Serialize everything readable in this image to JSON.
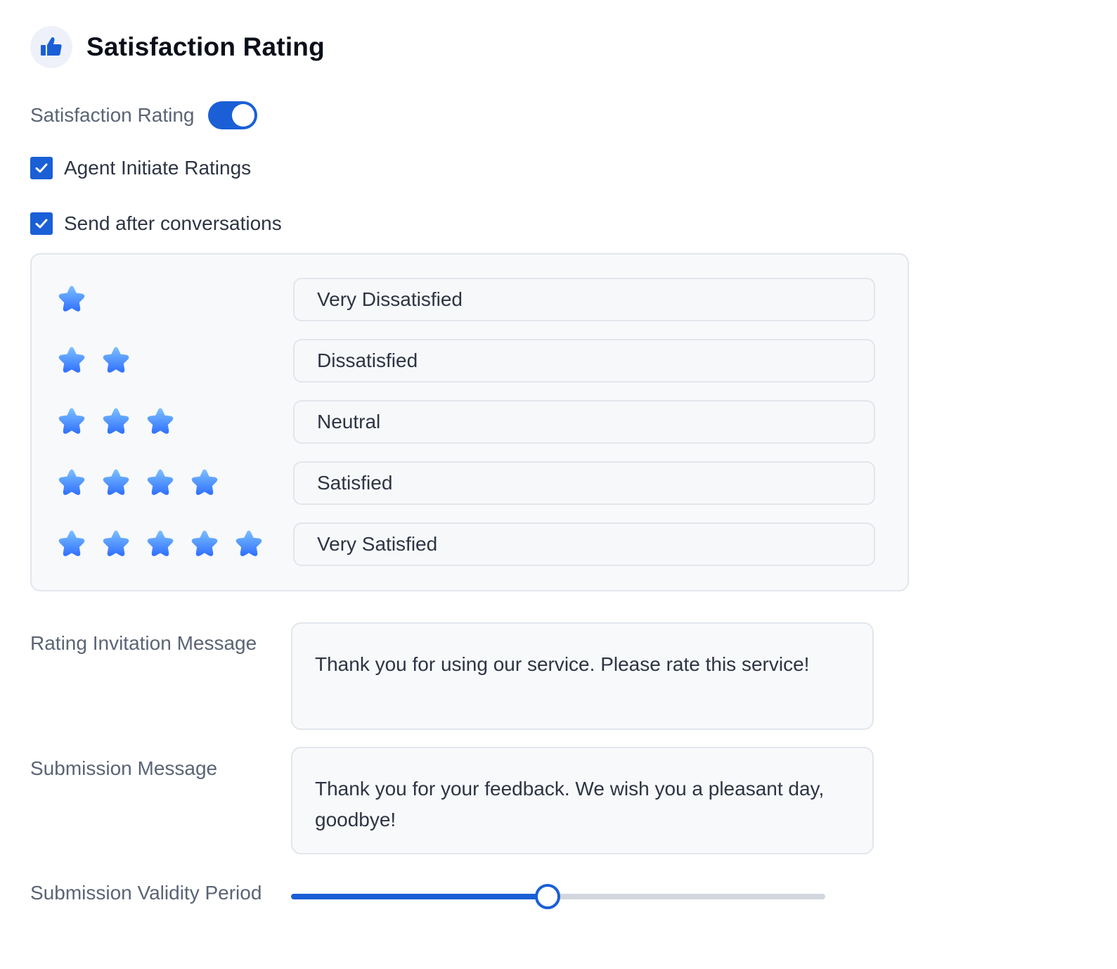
{
  "header": {
    "icon": "thumbs-up-icon",
    "title": "Satisfaction Rating"
  },
  "toggle": {
    "label": "Satisfaction Rating",
    "on": true
  },
  "options": {
    "agent_initiate": {
      "label": "Agent Initiate Ratings",
      "checked": true
    },
    "send_after": {
      "label": "Send after conversations",
      "checked": true
    }
  },
  "ratings": [
    {
      "stars": 1,
      "label": "Very Dissatisfied"
    },
    {
      "stars": 2,
      "label": "Dissatisfied"
    },
    {
      "stars": 3,
      "label": "Neutral"
    },
    {
      "stars": 4,
      "label": "Satisfied"
    },
    {
      "stars": 5,
      "label": "Very Satisfied"
    }
  ],
  "invitation": {
    "label": "Rating Invitation Message",
    "value": "Thank you for using our service. Please rate this service!"
  },
  "submission": {
    "label": "Submission Message",
    "value": "Thank you for your feedback. We wish you a pleasant day, goodbye!"
  },
  "validity": {
    "label": "Submission Validity Period",
    "fraction": 0.48
  },
  "colors": {
    "accent": "#1a5fd6",
    "star_light": "#7cc0ff",
    "star_dark": "#2f6fff"
  }
}
